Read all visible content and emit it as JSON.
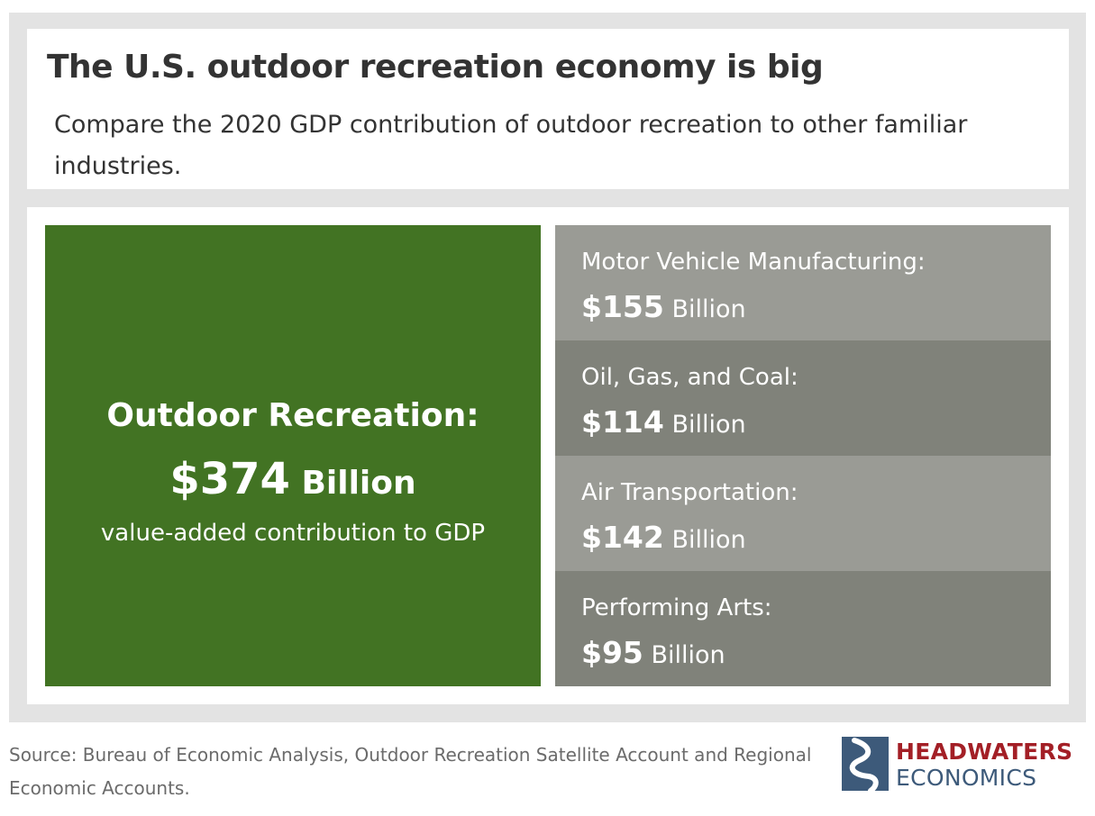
{
  "title": "The U.S. outdoor recreation economy is big",
  "subtitle": "Compare the 2020 GDP contribution of outdoor recreation to other familiar industries.",
  "source": "Source: Bureau of Economic Analysis, Outdoor Recreation Satellite Account and Regional Economic Accounts.",
  "logo": {
    "line1": "HEADWATERS",
    "line2": "ECONOMICS"
  },
  "colors": {
    "hero": "#427323",
    "tile_light": "#9a9b95",
    "tile_dark": "#80827a"
  },
  "chart_data": {
    "type": "treemap",
    "unit": "Billion",
    "hero": {
      "name": "Outdoor Recreation:",
      "value": 374,
      "value_text": "$374",
      "unit_text": "Billion",
      "note": "value-added contribution to GDP"
    },
    "items": [
      {
        "name": "Motor Vehicle Manufacturing:",
        "value": 155,
        "value_text": "$155",
        "unit_text": "Billion"
      },
      {
        "name": "Oil, Gas, and Coal:",
        "value": 114,
        "value_text": "$114",
        "unit_text": "Billion"
      },
      {
        "name": "Air Transportation:",
        "value": 142,
        "value_text": "$142",
        "unit_text": "Billion"
      },
      {
        "name": "Performing Arts:",
        "value": 95,
        "value_text": "$95",
        "unit_text": "Billion"
      }
    ]
  }
}
